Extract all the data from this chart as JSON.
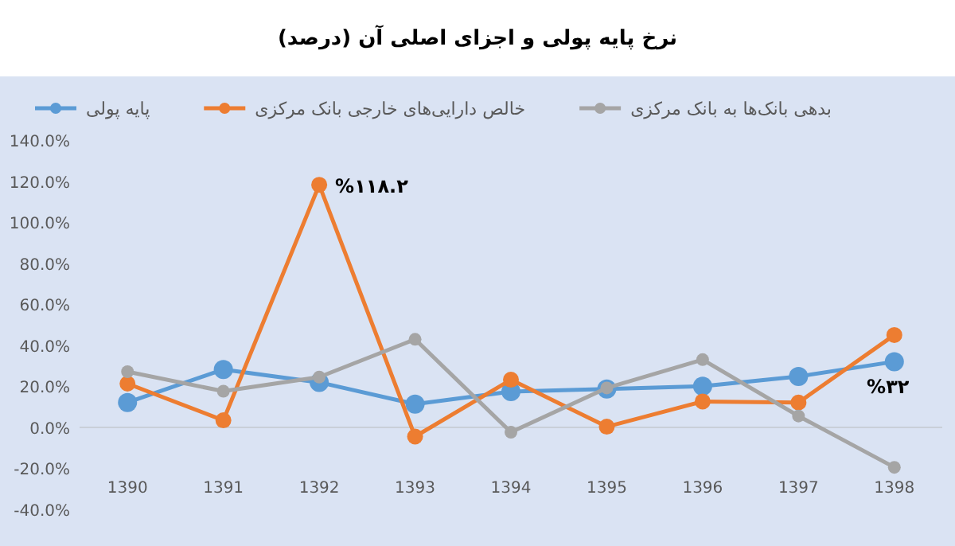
{
  "chart_data": {
    "type": "line",
    "title": "نرخ پایه پولی و اجزای اصلی آن (درصد)",
    "categories": [
      "1390",
      "1391",
      "1392",
      "1393",
      "1394",
      "1395",
      "1396",
      "1397",
      "1398"
    ],
    "series": [
      {
        "name": "پایه پولی",
        "color": "#5b9bd5",
        "values": [
          12.1,
          28.2,
          21.9,
          11.3,
          17.4,
          18.7,
          20,
          24.8,
          32
        ]
      },
      {
        "name": "خالص دارایی‌های خارجی بانک مرکزی",
        "color": "#ed7d31",
        "values": [
          21.3,
          3.4,
          118.2,
          -4.5,
          23.2,
          0.3,
          12.6,
          12.1,
          45
        ]
      },
      {
        "name": "بدهی بانک‌ها به بانک مرکزی",
        "color": "#a5a5a5",
        "values": [
          27.1,
          17.6,
          24.5,
          42.9,
          -2.4,
          19.2,
          33,
          5.5,
          -19.5
        ]
      }
    ],
    "ylim": [
      -40,
      140
    ],
    "yticks": [
      {
        "value": -40,
        "label": "-40.0%"
      },
      {
        "value": -20,
        "label": "-20.0%"
      },
      {
        "value": 0,
        "label": "0.0%"
      },
      {
        "value": 20,
        "label": "20.0%"
      },
      {
        "value": 40,
        "label": "40.0%"
      },
      {
        "value": 60,
        "label": "60.0%"
      },
      {
        "value": 80,
        "label": "80.0%"
      },
      {
        "value": 100,
        "label": "100.0%"
      },
      {
        "value": 120,
        "label": "120.0%"
      },
      {
        "value": 140,
        "label": "140.0%"
      }
    ],
    "annotations": [
      {
        "text": "%۱۱۸.۲",
        "x": "1392",
        "y": 118.2
      },
      {
        "text": "%۳۲",
        "x": "1398",
        "y": 32
      }
    ],
    "ref_lines": [
      {
        "axis": "y",
        "value": 0,
        "color": "#c9cfd8"
      }
    ],
    "marker": "circle",
    "line_style": "solid",
    "legend": "top",
    "grid": false
  }
}
